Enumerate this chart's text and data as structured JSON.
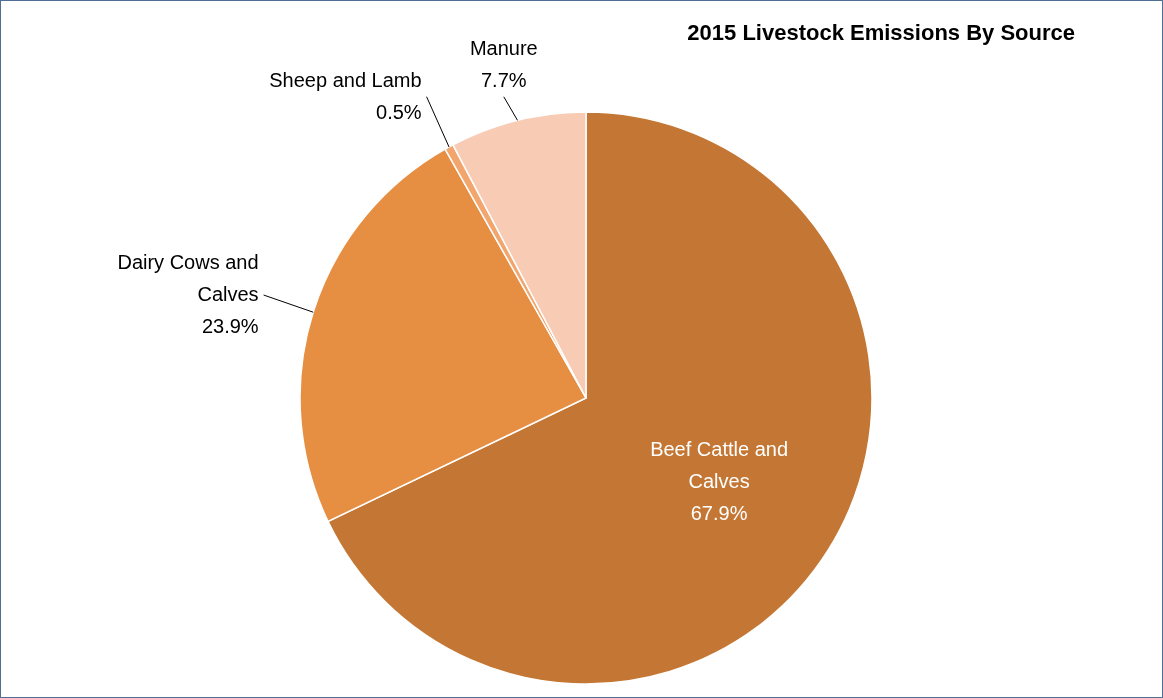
{
  "chart_data": {
    "type": "pie",
    "title": "2015 Livestock Emissions By Source",
    "categories": [
      "Beef Cattle and Calves",
      "Dairy Cows and Calves",
      "Sheep and Lamb",
      "Manure"
    ],
    "values": [
      67.9,
      23.9,
      0.5,
      7.7
    ],
    "colors": [
      "#c47734",
      "#e68e41",
      "#f2a66e",
      "#f8cbb4"
    ],
    "value_labels": [
      "67.9%",
      "23.9%",
      "0.5%",
      "7.7%"
    ]
  }
}
